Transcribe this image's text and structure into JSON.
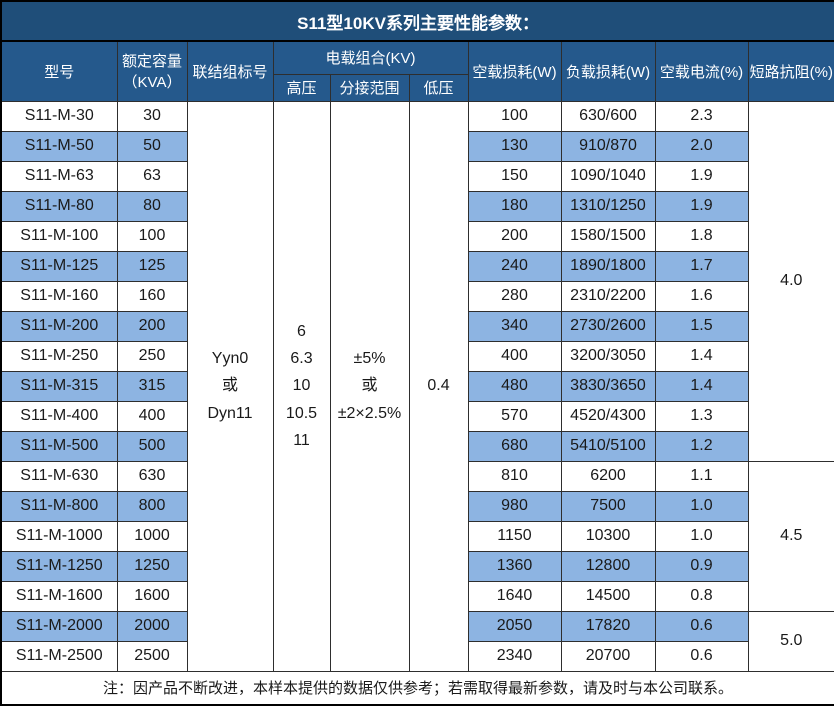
{
  "title": "S11型10KV系列主要性能参数：",
  "header": {
    "model": "型号",
    "capacity_line1": "额定容量",
    "capacity_line2": "（KVA）",
    "connection_group": "联结组标号",
    "voltage_combo": "电载组合(KV)",
    "high_voltage": "高压",
    "tap_range": "分接范围",
    "low_voltage": "低压",
    "no_load_loss": "空载损耗(W)",
    "load_loss": "负载损耗(W)",
    "no_load_current": "空载电流(%)",
    "short_circuit_impedance": "短路抗阻(%)"
  },
  "span_cells": {
    "connection_lines": [
      "Yyn0",
      "或",
      "Dyn11"
    ],
    "high_voltage_lines": [
      "6",
      "6.3",
      "10",
      "10.5",
      "11"
    ],
    "tap_range_lines": [
      "±5%",
      "或",
      "±2×2.5%"
    ],
    "low_voltage": "0.4"
  },
  "rows": [
    {
      "model": "S11-M-30",
      "kva": "30",
      "no_load_loss": "100",
      "load_loss": "630/600",
      "no_load_current": "2.3"
    },
    {
      "model": "S11-M-50",
      "kva": "50",
      "no_load_loss": "130",
      "load_loss": "910/870",
      "no_load_current": "2.0"
    },
    {
      "model": "S11-M-63",
      "kva": "63",
      "no_load_loss": "150",
      "load_loss": "1090/1040",
      "no_load_current": "1.9"
    },
    {
      "model": "S11-M-80",
      "kva": "80",
      "no_load_loss": "180",
      "load_loss": "1310/1250",
      "no_load_current": "1.9"
    },
    {
      "model": "S11-M-100",
      "kva": "100",
      "no_load_loss": "200",
      "load_loss": "1580/1500",
      "no_load_current": "1.8"
    },
    {
      "model": "S11-M-125",
      "kva": "125",
      "no_load_loss": "240",
      "load_loss": "1890/1800",
      "no_load_current": "1.7"
    },
    {
      "model": "S11-M-160",
      "kva": "160",
      "no_load_loss": "280",
      "load_loss": "2310/2200",
      "no_load_current": "1.6"
    },
    {
      "model": "S11-M-200",
      "kva": "200",
      "no_load_loss": "340",
      "load_loss": "2730/2600",
      "no_load_current": "1.5"
    },
    {
      "model": "S11-M-250",
      "kva": "250",
      "no_load_loss": "400",
      "load_loss": "3200/3050",
      "no_load_current": "1.4"
    },
    {
      "model": "S11-M-315",
      "kva": "315",
      "no_load_loss": "480",
      "load_loss": "3830/3650",
      "no_load_current": "1.4"
    },
    {
      "model": "S11-M-400",
      "kva": "400",
      "no_load_loss": "570",
      "load_loss": "4520/4300",
      "no_load_current": "1.3"
    },
    {
      "model": "S11-M-500",
      "kva": "500",
      "no_load_loss": "680",
      "load_loss": "5410/5100",
      "no_load_current": "1.2"
    },
    {
      "model": "S11-M-630",
      "kva": "630",
      "no_load_loss": "810",
      "load_loss": "6200",
      "no_load_current": "1.1"
    },
    {
      "model": "S11-M-800",
      "kva": "800",
      "no_load_loss": "980",
      "load_loss": "7500",
      "no_load_current": "1.0"
    },
    {
      "model": "S11-M-1000",
      "kva": "1000",
      "no_load_loss": "1150",
      "load_loss": "10300",
      "no_load_current": "1.0"
    },
    {
      "model": "S11-M-1250",
      "kva": "1250",
      "no_load_loss": "1360",
      "load_loss": "12800",
      "no_load_current": "0.9"
    },
    {
      "model": "S11-M-1600",
      "kva": "1600",
      "no_load_loss": "1640",
      "load_loss": "14500",
      "no_load_current": "0.8"
    },
    {
      "model": "S11-M-2000",
      "kva": "2000",
      "no_load_loss": "2050",
      "load_loss": "17820",
      "no_load_current": "0.6"
    },
    {
      "model": "S11-M-2500",
      "kva": "2500",
      "no_load_loss": "2340",
      "load_loss": "20700",
      "no_load_current": "0.6"
    }
  ],
  "impedance_groups": [
    {
      "value": "4.0",
      "span": 12
    },
    {
      "value": "4.5",
      "span": 5
    },
    {
      "value": "5.0",
      "span": 2
    }
  ],
  "footer_note": "注：因产品不断改进，本样本提供的数据仅供参考；若需取得最新参数，请及时与本公司联系。",
  "colors": {
    "title_bg": "#1F4E79",
    "header_bg": "#25598C",
    "stripe_bg": "#8DB4E2",
    "border": "#2E2E2E",
    "text_light": "#FFFFFF",
    "text_dark": "#1A1A1A"
  }
}
